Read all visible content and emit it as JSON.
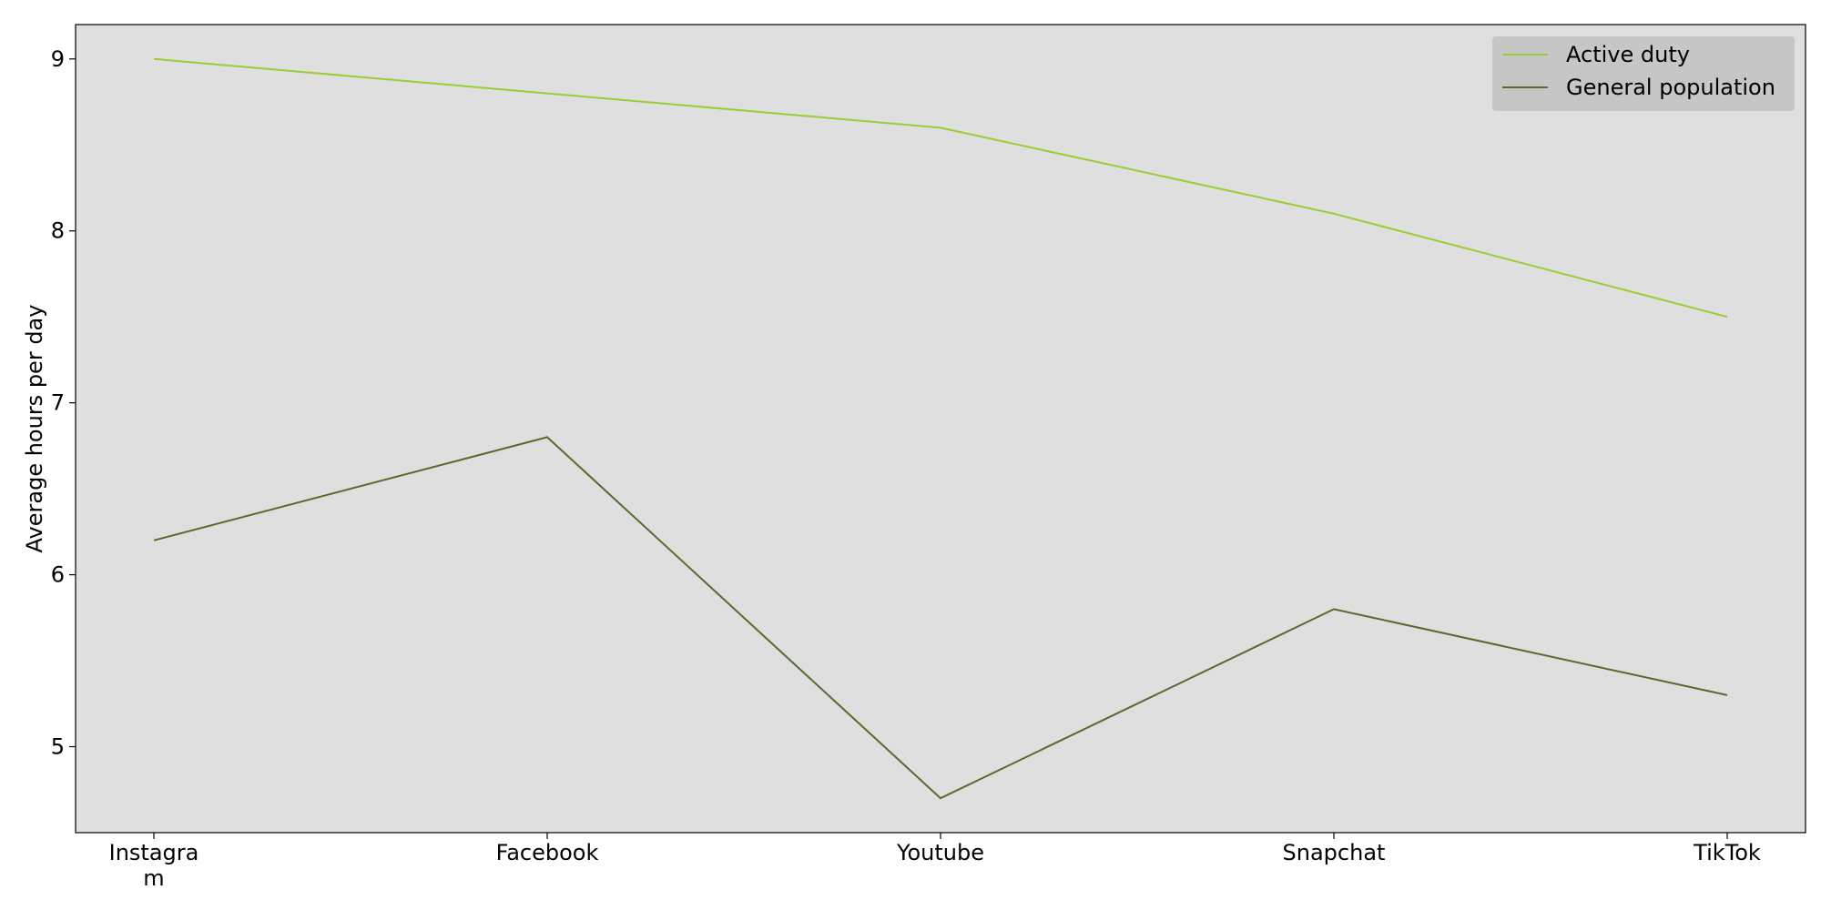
{
  "chart_data": {
    "type": "line",
    "title": "",
    "xlabel": "",
    "ylabel": "Average hours per day",
    "categories": [
      "Instagra\nm",
      "Facebook",
      "Youtube",
      "Snapchat",
      "TikTok"
    ],
    "ylim": [
      4.5,
      9.2
    ],
    "yticks": [
      5,
      6,
      7,
      8,
      9
    ],
    "grid": false,
    "legend_position": "top-right",
    "plot_background": "#dfdfdf",
    "legend_background": "#c6c6c6",
    "series": [
      {
        "name": "Active duty",
        "color": "#9acd32",
        "values": [
          9.0,
          8.8,
          8.6,
          8.1,
          7.5
        ]
      },
      {
        "name": "General population",
        "color": "#556b2f",
        "values": [
          6.2,
          6.8,
          4.7,
          5.8,
          5.3
        ]
      }
    ]
  }
}
